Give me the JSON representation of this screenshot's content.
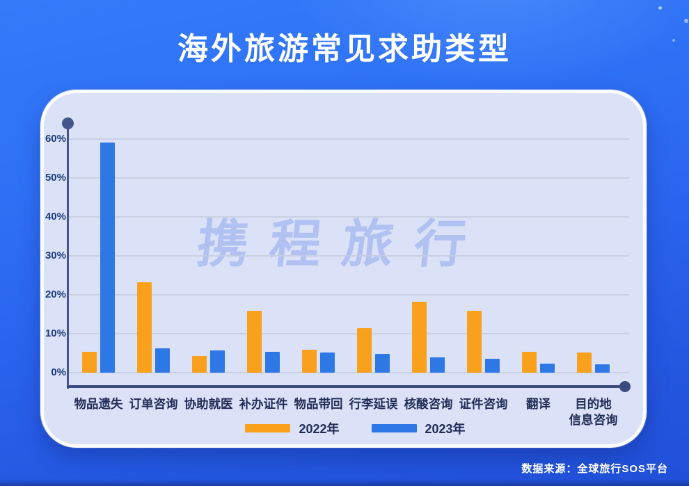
{
  "title": "海外旅游常见求助类型",
  "watermark": "携程旅行",
  "source_note": "数据来源：全球旅行SOS平台",
  "colors": {
    "background_top": "#347af9",
    "background_bottom": "#2150d8",
    "card_background": "#dbe1f7",
    "axis": "#3a4b80",
    "gridline": "#c6cce0",
    "series_2022": "#F9A11D",
    "series_2023": "#2E78E6",
    "title_text": "#ffffff",
    "label_text": "#212d56"
  },
  "chart_data": {
    "type": "bar",
    "title": "海外旅游常见求助类型",
    "xlabel": "",
    "ylabel": "",
    "unit": "%",
    "ylim": [
      0,
      63
    ],
    "grid": true,
    "legend_position": "bottom",
    "y_ticks": [
      "0%",
      "10%",
      "20%",
      "30%",
      "40%",
      "50%",
      "60%"
    ],
    "categories": [
      {
        "name": "物品遗失",
        "lines": [
          "物品遗失"
        ]
      },
      {
        "name": "订单咨询",
        "lines": [
          "订单咨询"
        ]
      },
      {
        "name": "协助就医",
        "lines": [
          "协助就医"
        ]
      },
      {
        "name": "补办证件",
        "lines": [
          "补办证件"
        ]
      },
      {
        "name": "物品带回",
        "lines": [
          "物品带回"
        ]
      },
      {
        "name": "行李延误",
        "lines": [
          "行李延误"
        ]
      },
      {
        "name": "核酸咨询",
        "lines": [
          "核酸咨询"
        ]
      },
      {
        "name": "证件咨询",
        "lines": [
          "证件咨询"
        ]
      },
      {
        "name": "翻译",
        "lines": [
          "翻译"
        ]
      },
      {
        "name": "目的地信息咨询",
        "lines": [
          "目的地",
          "信息咨询"
        ]
      }
    ],
    "series": [
      {
        "name": "2022年",
        "color": "#F9A11D",
        "values": [
          5.4,
          23.3,
          4.2,
          15.9,
          5.9,
          11.5,
          18.2,
          15.9,
          5.4,
          5.2
        ]
      },
      {
        "name": "2023年",
        "color": "#2E78E6",
        "values": [
          59.1,
          6.2,
          5.8,
          5.3,
          5.2,
          4.9,
          3.9,
          3.5,
          2.4,
          2.1
        ]
      }
    ]
  }
}
